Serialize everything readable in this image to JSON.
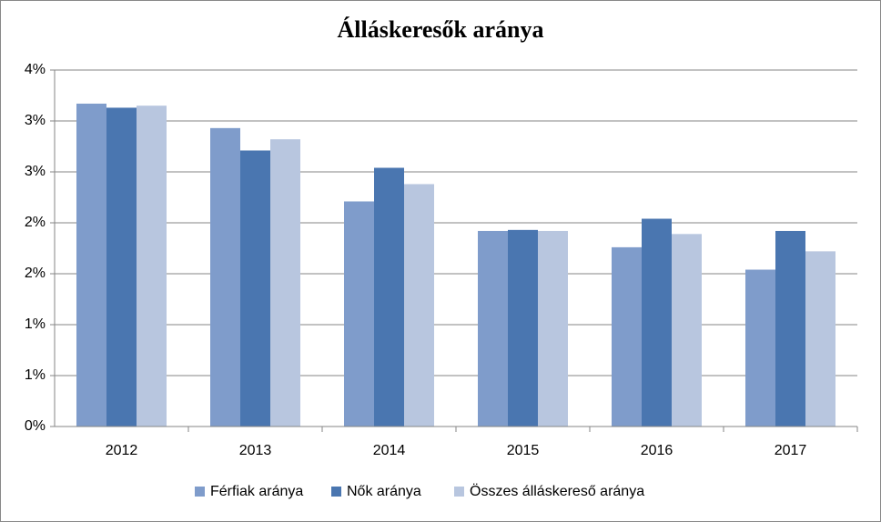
{
  "chart_data": {
    "type": "bar",
    "title": "Álláskeresők  aránya",
    "categories": [
      "2012",
      "2013",
      "2014",
      "2015",
      "2016",
      "2017"
    ],
    "series": [
      {
        "name": "Férfiak aránya",
        "color": "#7f9ccb",
        "values": [
          3.17,
          2.93,
          2.21,
          1.92,
          1.76,
          1.54
        ]
      },
      {
        "name": "Nők aránya",
        "color": "#4a76b0",
        "values": [
          3.13,
          2.71,
          2.54,
          1.93,
          2.04,
          1.92
        ]
      },
      {
        "name": "Összes álláskereső aránya",
        "color": "#b8c6df",
        "values": [
          3.15,
          2.82,
          2.38,
          1.92,
          1.89,
          1.72
        ]
      }
    ],
    "ylim": [
      0,
      3.5
    ],
    "yticks": [
      {
        "value": 0,
        "label": "0%"
      },
      {
        "value": 0.5,
        "label": "1%"
      },
      {
        "value": 1,
        "label": "1%"
      },
      {
        "value": 1.5,
        "label": "2%"
      },
      {
        "value": 2,
        "label": "2%"
      },
      {
        "value": 2.5,
        "label": "3%"
      },
      {
        "value": 3,
        "label": "3%"
      },
      {
        "value": 3.5,
        "label": "4%"
      }
    ],
    "grid": true,
    "legend": "bottom"
  }
}
